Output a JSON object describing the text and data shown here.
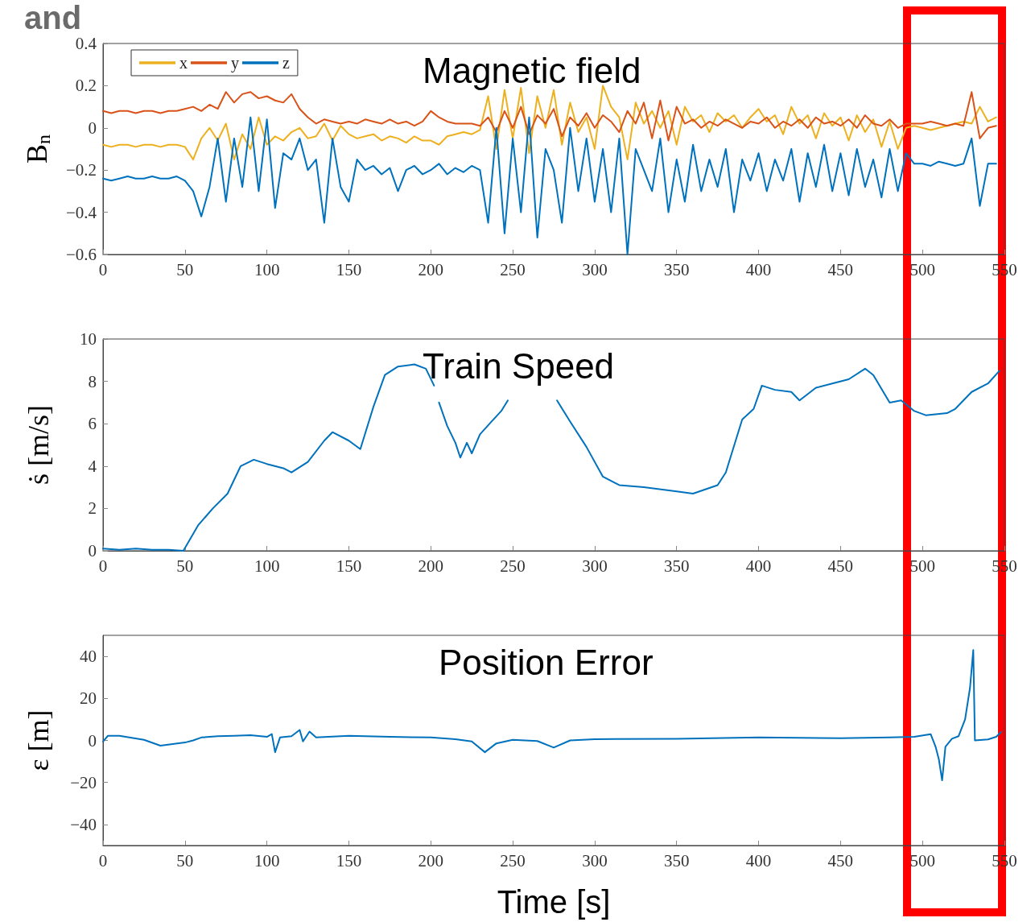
{
  "chart_data": [
    {
      "type": "line",
      "title": "Magnetic field",
      "ylabel": "B$_{n}$",
      "annotations": [
        "and"
      ],
      "legend": "top left",
      "xlim": [
        0,
        550
      ],
      "xticks": [
        0,
        50,
        100,
        150,
        200,
        250,
        300,
        350,
        400,
        450,
        500,
        550
      ],
      "ylim": [
        -0.6,
        0.4
      ],
      "yticks": [
        -0.6,
        -0.4,
        -0.2,
        0,
        0.2,
        0.4
      ],
      "x": [
        0,
        5,
        10,
        15,
        20,
        25,
        30,
        35,
        40,
        45,
        50,
        55,
        60,
        65,
        70,
        75,
        80,
        85,
        90,
        95,
        100,
        105,
        110,
        115,
        120,
        125,
        130,
        135,
        140,
        145,
        150,
        155,
        160,
        165,
        170,
        175,
        180,
        185,
        190,
        195,
        200,
        205,
        210,
        215,
        220,
        225,
        230,
        235,
        240,
        245,
        250,
        255,
        260,
        265,
        270,
        275,
        280,
        285,
        290,
        295,
        300,
        305,
        310,
        315,
        320,
        325,
        330,
        335,
        340,
        345,
        350,
        355,
        360,
        365,
        370,
        375,
        380,
        385,
        390,
        395,
        400,
        405,
        410,
        415,
        420,
        425,
        430,
        435,
        440,
        445,
        450,
        455,
        460,
        465,
        470,
        475,
        480,
        485,
        490,
        495,
        500,
        505,
        510,
        515,
        520,
        525,
        530,
        535,
        540,
        545
      ],
      "series": [
        {
          "name": "x",
          "color": "#edb120",
          "values": [
            -0.08,
            -0.09,
            -0.08,
            -0.08,
            -0.09,
            -0.08,
            -0.08,
            -0.09,
            -0.08,
            -0.08,
            -0.09,
            -0.15,
            -0.05,
            0.0,
            -0.06,
            0.02,
            -0.15,
            -0.03,
            -0.1,
            0.05,
            -0.08,
            -0.04,
            -0.06,
            -0.02,
            0.0,
            -0.05,
            -0.04,
            0.02,
            -0.06,
            0.01,
            -0.03,
            -0.05,
            -0.04,
            -0.03,
            -0.06,
            -0.04,
            -0.05,
            -0.07,
            -0.04,
            -0.06,
            -0.06,
            -0.08,
            -0.04,
            -0.03,
            -0.02,
            -0.03,
            -0.01,
            0.15,
            -0.1,
            0.18,
            -0.05,
            0.19,
            -0.12,
            0.15,
            0.0,
            0.18,
            -0.08,
            0.12,
            -0.02,
            0.05,
            -0.1,
            0.2,
            0.1,
            0.05,
            -0.15,
            0.12,
            0.02,
            0.08,
            0.0,
            0.08,
            -0.08,
            0.1,
            0.03,
            0.06,
            -0.02,
            0.07,
            0.03,
            0.06,
            0.0,
            0.05,
            0.09,
            0.03,
            0.06,
            -0.03,
            0.1,
            0.02,
            0.06,
            -0.05,
            0.07,
            0.01,
            0.05,
            -0.06,
            0.06,
            -0.02,
            0.04,
            -0.09,
            0.03,
            -0.1,
            0.0,
            0.01,
            0.0,
            -0.01,
            0.0,
            0.01,
            0.02,
            0.03,
            0.02,
            0.1,
            0.03,
            0.05
          ]
        },
        {
          "name": "y",
          "color": "#d95319",
          "values": [
            0.08,
            0.07,
            0.08,
            0.08,
            0.07,
            0.08,
            0.08,
            0.07,
            0.08,
            0.08,
            0.09,
            0.1,
            0.08,
            0.11,
            0.09,
            0.17,
            0.12,
            0.16,
            0.17,
            0.14,
            0.15,
            0.13,
            0.12,
            0.16,
            0.09,
            0.05,
            0.02,
            0.04,
            0.03,
            0.02,
            0.03,
            0.02,
            0.04,
            0.03,
            0.02,
            0.04,
            0.02,
            0.03,
            0.01,
            0.03,
            0.08,
            0.05,
            0.03,
            0.02,
            0.02,
            0.02,
            0.01,
            0.05,
            -0.02,
            0.08,
            0.0,
            0.1,
            -0.03,
            0.06,
            0.02,
            0.09,
            -0.04,
            0.05,
            0.01,
            0.07,
            0.0,
            0.06,
            0.03,
            -0.02,
            0.08,
            0.02,
            0.12,
            -0.05,
            0.13,
            -0.06,
            0.1,
            0.02,
            0.04,
            0.0,
            0.03,
            0.01,
            0.04,
            0.02,
            0.0,
            0.03,
            0.02,
            0.05,
            0.0,
            0.03,
            0.01,
            0.04,
            0.0,
            0.05,
            0.02,
            0.03,
            0.01,
            0.04,
            0.0,
            0.06,
            0.02,
            0.01,
            0.04,
            0.0,
            0.02,
            0.02,
            0.02,
            0.03,
            0.02,
            0.01,
            0.02,
            0.01,
            0.17,
            -0.05,
            0.0,
            0.01
          ]
        },
        {
          "name": "z",
          "color": "#0072bd",
          "values": [
            -0.24,
            -0.25,
            -0.24,
            -0.23,
            -0.24,
            -0.24,
            -0.23,
            -0.24,
            -0.24,
            -0.23,
            -0.25,
            -0.3,
            -0.42,
            -0.28,
            -0.05,
            -0.35,
            -0.05,
            -0.28,
            0.05,
            -0.3,
            0.04,
            -0.38,
            -0.12,
            -0.15,
            -0.05,
            -0.2,
            -0.15,
            -0.45,
            -0.05,
            -0.28,
            -0.35,
            -0.15,
            -0.2,
            -0.18,
            -0.22,
            -0.19,
            -0.3,
            -0.2,
            -0.18,
            -0.22,
            -0.2,
            -0.17,
            -0.22,
            -0.19,
            -0.21,
            -0.18,
            -0.2,
            -0.45,
            0.0,
            -0.5,
            -0.05,
            -0.4,
            0.05,
            -0.52,
            -0.1,
            -0.2,
            -0.45,
            0.0,
            -0.3,
            -0.05,
            -0.35,
            -0.1,
            -0.4,
            -0.05,
            -0.6,
            -0.1,
            -0.2,
            -0.3,
            -0.05,
            -0.4,
            -0.15,
            -0.35,
            -0.08,
            -0.3,
            -0.15,
            -0.28,
            -0.1,
            -0.4,
            -0.15,
            -0.25,
            -0.12,
            -0.3,
            -0.15,
            -0.25,
            -0.1,
            -0.35,
            -0.12,
            -0.28,
            -0.08,
            -0.3,
            -0.12,
            -0.32,
            -0.1,
            -0.28,
            -0.15,
            -0.33,
            -0.1,
            -0.3,
            -0.12,
            -0.17,
            -0.17,
            -0.18,
            -0.16,
            -0.17,
            -0.18,
            -0.17,
            -0.05,
            -0.37,
            -0.17,
            -0.17
          ]
        }
      ]
    },
    {
      "type": "line",
      "title": "Train Speed",
      "ylabel": "ṡ [m/s]",
      "xlim": [
        0,
        550
      ],
      "xticks": [
        0,
        50,
        100,
        150,
        200,
        250,
        300,
        350,
        400,
        450,
        500,
        550
      ],
      "ylim": [
        0,
        10
      ],
      "yticks": [
        0,
        2,
        4,
        6,
        8,
        10
      ],
      "x": [
        0,
        10,
        20,
        30,
        40,
        49,
        58,
        67,
        76,
        84,
        92,
        100,
        110,
        115,
        125,
        135,
        140,
        150,
        157,
        165,
        172,
        180,
        190,
        197,
        202,
        203,
        205,
        210,
        215,
        218,
        222,
        225,
        230,
        237,
        243,
        247,
        260,
        277,
        285,
        295,
        305,
        315,
        330,
        350,
        360,
        375,
        380,
        390,
        397,
        402,
        410,
        420,
        425,
        435,
        445,
        455,
        465,
        470,
        480,
        487,
        495,
        502,
        515,
        520,
        530,
        540,
        547
      ],
      "series": [
        {
          "color": "#0072bd",
          "values": [
            0.1,
            0.05,
            0.1,
            0.05,
            0.05,
            0,
            1.2,
            2.0,
            2.7,
            4.0,
            4.3,
            4.1,
            3.9,
            3.7,
            4.2,
            5.2,
            5.6,
            5.2,
            4.8,
            6.8,
            8.3,
            8.7,
            8.8,
            8.6,
            7.8,
            null,
            7.0,
            5.9,
            5.1,
            4.4,
            5.1,
            4.6,
            5.5,
            6.1,
            6.6,
            7.1,
            null,
            7.1,
            6.1,
            4.9,
            3.5,
            3.1,
            3.0,
            2.8,
            2.7,
            3.1,
            3.7,
            6.2,
            6.7,
            7.8,
            7.6,
            7.5,
            7.1,
            7.7,
            7.9,
            8.1,
            8.6,
            8.3,
            7.0,
            7.1,
            6.6,
            6.4,
            6.5,
            6.7,
            7.5,
            7.9,
            8.5
          ]
        }
      ]
    },
    {
      "type": "line",
      "title": "Position Error",
      "ylabel": "ε [m]",
      "xlabel": "Time [s]",
      "xlim": [
        0,
        550
      ],
      "xticks": [
        0,
        50,
        100,
        150,
        200,
        250,
        300,
        350,
        400,
        450,
        500,
        550
      ],
      "ylim": [
        -50,
        50
      ],
      "yticks": [
        -40,
        -20,
        0,
        20,
        40
      ],
      "x": [
        0,
        3,
        10,
        25,
        35,
        50,
        55,
        60,
        70,
        80,
        90,
        100,
        103,
        105,
        108,
        115,
        120,
        122,
        126,
        130,
        150,
        175,
        200,
        215,
        225,
        233,
        240,
        250,
        265,
        275,
        285,
        300,
        350,
        400,
        450,
        480,
        495,
        505,
        508,
        510,
        512,
        514,
        518,
        522,
        526,
        529,
        531,
        532,
        540,
        545,
        548
      ],
      "series": [
        {
          "color": "#0072bd",
          "values": [
            -0.5,
            2.2,
            2.2,
            0.3,
            -2.5,
            -1,
            0,
            1.4,
            2,
            2.2,
            2.5,
            1.7,
            3,
            -5.6,
            1.4,
            2,
            5,
            -0.5,
            4.2,
            1.4,
            2.2,
            1.7,
            1.4,
            0.6,
            -0.5,
            -5.6,
            -1.4,
            0.3,
            -0.3,
            -3.4,
            0,
            0.6,
            0.8,
            1.4,
            1.1,
            1.4,
            1.7,
            3,
            -3,
            -9,
            -19,
            -3,
            0.8,
            2,
            10,
            25,
            43,
            0,
            0.5,
            1.7,
            4
          ]
        }
      ]
    }
  ]
}
